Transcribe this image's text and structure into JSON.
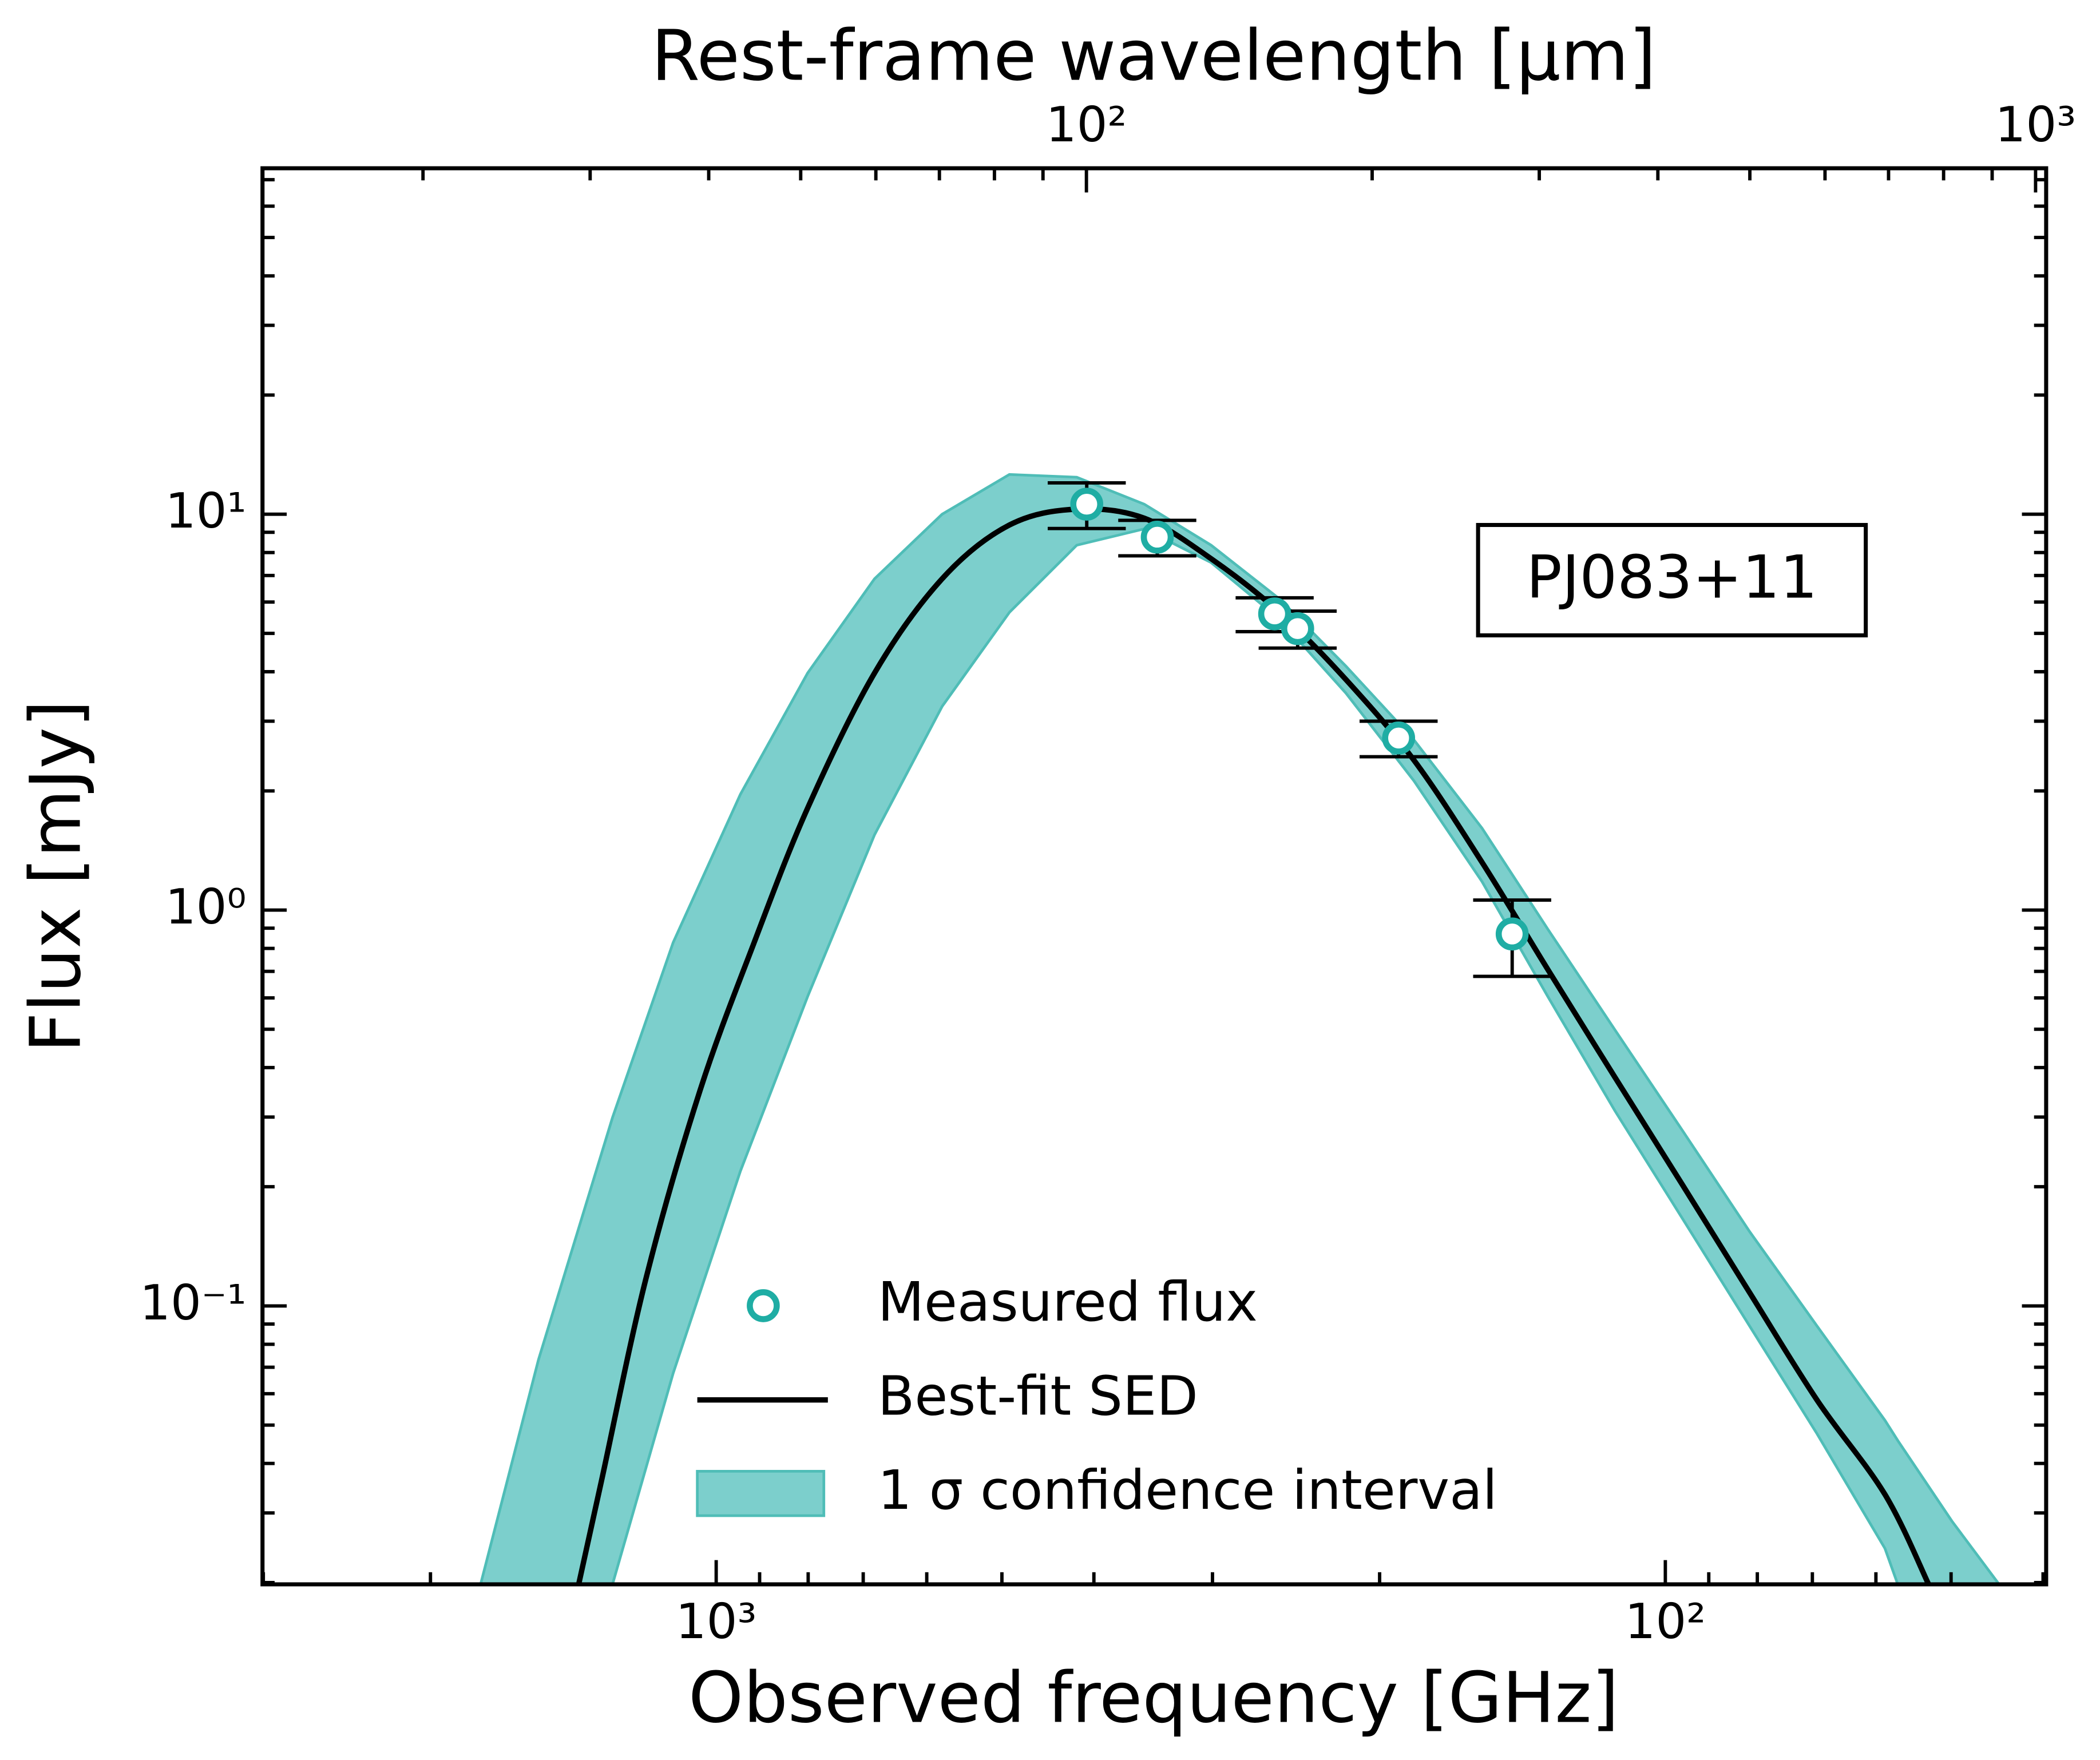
{
  "chart_data": {
    "type": "scatter",
    "x_label": "Observed frequency [GHz]",
    "x2_label": "Rest-frame wavelength [μm]",
    "y_label": "Flux [mJy]",
    "annotation": "PJ083+11",
    "xscale": "log",
    "yscale": "log",
    "xlim": [
      3006,
      39.7
    ],
    "xticks": [
      {
        "value": 1000,
        "label": "10³"
      },
      {
        "value": 100,
        "label": "10²"
      }
    ],
    "x2lim": [
      13.55,
      1026
    ],
    "x2ticks": [
      {
        "value": 100,
        "label": "10²"
      },
      {
        "value": 1000,
        "label": "10³"
      }
    ],
    "ylim": [
      0.0198,
      74.8
    ],
    "yticks": [
      {
        "value": 0.1,
        "label": "10⁻¹"
      },
      {
        "value": 1,
        "label": "10⁰"
      },
      {
        "value": 10,
        "label": "10¹"
      }
    ],
    "legend": "lower center",
    "series": [
      {
        "name": "Measured flux",
        "type": "scatter",
        "color": "#1fada4",
        "x": [
          407,
          343,
          258,
          244,
          191,
          145
        ],
        "values": [
          10.6,
          8.75,
          5.6,
          5.14,
          2.72,
          0.87
        ],
        "errors": [
          1.4,
          0.9,
          0.55,
          0.55,
          0.28,
          0.19
        ]
      },
      {
        "name": "Best-fit SED",
        "type": "line",
        "color": "#000000",
        "x": [
          1396,
          1321,
          1186,
          1040,
          912,
          801,
          681,
          578,
          491,
          417,
          354,
          301,
          255,
          217,
          184,
          156,
          133,
          113,
          95.9,
          81.5,
          69.2,
          58.7,
          52.8
        ],
        "values": [
          0.0198,
          0.0361,
          0.117,
          0.35,
          0.828,
          1.81,
          3.97,
          6.87,
          9.39,
          10.3,
          9.77,
          7.72,
          5.65,
          3.82,
          2.39,
          1.32,
          0.708,
          0.378,
          0.202,
          0.108,
          0.0578,
          0.0334,
          0.0198
        ]
      },
      {
        "name": "1 σ confidence interval",
        "type": "band",
        "color": "#7ccfcc",
        "edge_color": "#4fbdb7",
        "x": [
          1771,
          1539,
          1286,
          1110,
          943,
          801,
          681,
          578,
          491,
          417,
          354,
          301,
          255,
          217,
          184,
          156,
          133,
          113,
          95.9,
          81.5,
          69.2,
          58.7,
          56.9,
          49.9,
          44.5
        ],
        "upper": [
          0.0198,
          0.0731,
          0.299,
          0.828,
          1.96,
          3.97,
          6.87,
          10.0,
          12.6,
          12.4,
          10.6,
          8.35,
          6.11,
          4.13,
          2.69,
          1.61,
          0.895,
          0.498,
          0.277,
          0.154,
          0.0889,
          0.0514,
          0.0457,
          0.0286,
          0.0198
        ],
        "lower": [
          null,
          null,
          0.0198,
          0.0676,
          0.219,
          0.605,
          1.55,
          3.27,
          5.65,
          8.35,
          9.18,
          7.55,
          5.43,
          3.53,
          2.12,
          1.18,
          0.605,
          0.311,
          0.166,
          0.0889,
          0.0475,
          0.0244,
          0.0198,
          null,
          null
        ]
      }
    ]
  }
}
